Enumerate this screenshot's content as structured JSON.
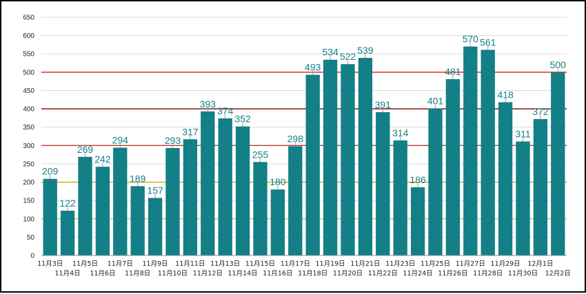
{
  "chart_data": {
    "type": "bar",
    "title": "",
    "xlabel": "",
    "ylabel": "",
    "ylim": [
      0,
      650
    ],
    "yticks": [
      0,
      50,
      100,
      150,
      200,
      250,
      300,
      350,
      400,
      450,
      500,
      550,
      600,
      650
    ],
    "grid": true,
    "legend": "none",
    "bar_color": "#137f86",
    "label_color": "#137f86",
    "categories": [
      "11月3日",
      "11月4日",
      "11月5日",
      "11月6日",
      "11月7日",
      "11月8日",
      "11月9日",
      "11月10日",
      "11月11日",
      "11月12日",
      "11月13日",
      "11月14日",
      "11月15日",
      "11月16日",
      "11月17日",
      "11月18日",
      "11月19日",
      "11月20日",
      "11月21日",
      "11月22日",
      "11月23日",
      "11月24日",
      "11月25日",
      "11月26日",
      "11月27日",
      "11月28日",
      "11月29日",
      "11月30日",
      "12月1日",
      "12月2日"
    ],
    "values": [
      209,
      122,
      269,
      242,
      294,
      189,
      157,
      293,
      317,
      393,
      374,
      352,
      255,
      180,
      298,
      493,
      534,
      522,
      539,
      391,
      314,
      186,
      401,
      481,
      570,
      561,
      418,
      311,
      372,
      500
    ],
    "reference_lines": [
      {
        "value": 100,
        "color": "#d4c400"
      },
      {
        "value": 200,
        "color": "#d4a800"
      },
      {
        "value": 300,
        "color": "#c0392b"
      },
      {
        "value": 400,
        "color": "#7a0000"
      },
      {
        "value": 500,
        "color": "#e00000"
      }
    ]
  }
}
